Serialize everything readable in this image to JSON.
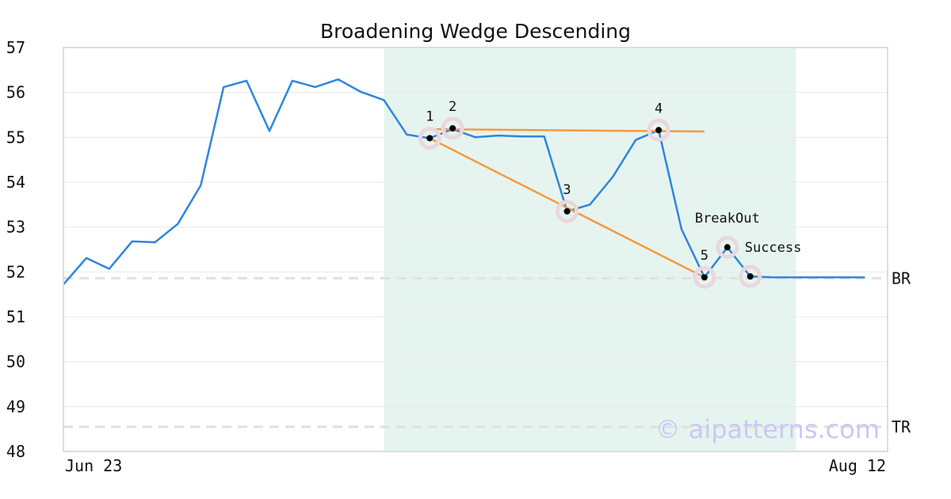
{
  "chart_data": {
    "type": "line",
    "title": "Broadening Wedge Descending",
    "xlabel": "",
    "ylabel": "",
    "x_tick_labels": [
      "Jun 23",
      "Aug 12"
    ],
    "x_range": [
      0,
      36
    ],
    "ylim": [
      48,
      57
    ],
    "y_ticks": [
      48,
      49,
      50,
      51,
      52,
      53,
      54,
      55,
      56,
      57
    ],
    "grid": "horizontal",
    "series": [
      {
        "color": "#2e86de",
        "x": [
          0,
          1,
          2,
          3,
          4,
          5,
          6,
          7,
          8,
          9,
          10,
          11,
          12,
          13,
          14,
          15,
          16,
          17,
          18,
          19,
          20,
          21,
          22,
          23,
          24,
          25,
          26,
          27,
          28,
          29,
          30,
          31,
          32,
          33,
          34,
          35
        ],
        "values": [
          51.72,
          52.31,
          52.07,
          52.68,
          52.66,
          53.07,
          53.93,
          56.12,
          56.26,
          55.14,
          56.26,
          56.12,
          56.29,
          56.01,
          55.83,
          55.06,
          54.98,
          55.18,
          55.0,
          55.04,
          55.02,
          55.02,
          53.35,
          53.5,
          54.12,
          54.94,
          55.16,
          52.95,
          51.88,
          52.55,
          51.9,
          51.88,
          51.88,
          51.88,
          51.88,
          51.88
        ]
      }
    ],
    "highlight_region": {
      "x_start": 14,
      "x_end": 32,
      "color": "#e6f4ef"
    },
    "trend_lines": [
      {
        "color": "#f59a3e",
        "points": [
          [
            16,
            55.18
          ],
          [
            28,
            55.13
          ]
        ]
      },
      {
        "color": "#f59a3e",
        "points": [
          [
            16,
            54.98
          ],
          [
            28,
            51.88
          ]
        ]
      }
    ],
    "key_points": [
      {
        "label": "1",
        "x": 16,
        "y": 54.98
      },
      {
        "label": "2",
        "x": 17,
        "y": 55.2
      },
      {
        "label": "3",
        "x": 22,
        "y": 53.35
      },
      {
        "label": "4",
        "x": 26,
        "y": 55.16
      },
      {
        "label": "5",
        "x": 28,
        "y": 51.88
      },
      {
        "label": "",
        "x": 29,
        "y": 52.55
      },
      {
        "label": "",
        "x": 30,
        "y": 51.9
      }
    ],
    "annotations": [
      {
        "text": "BreakOut",
        "x": 29,
        "y": 53.1
      },
      {
        "text": "Success",
        "x": 31,
        "y": 52.45
      }
    ],
    "reference_lines": [
      {
        "label": "BR",
        "y": 51.86,
        "color": "#e0e0e0"
      },
      {
        "label": "TR",
        "y": 48.55,
        "color": "#e0e0e0"
      }
    ],
    "colors": {
      "price_line": "#2e86de",
      "trend_line": "#f59a3e",
      "marker_halo": "#ead7de",
      "axis_frame": "#dddddd"
    }
  },
  "watermark": "© aipatterns.com"
}
